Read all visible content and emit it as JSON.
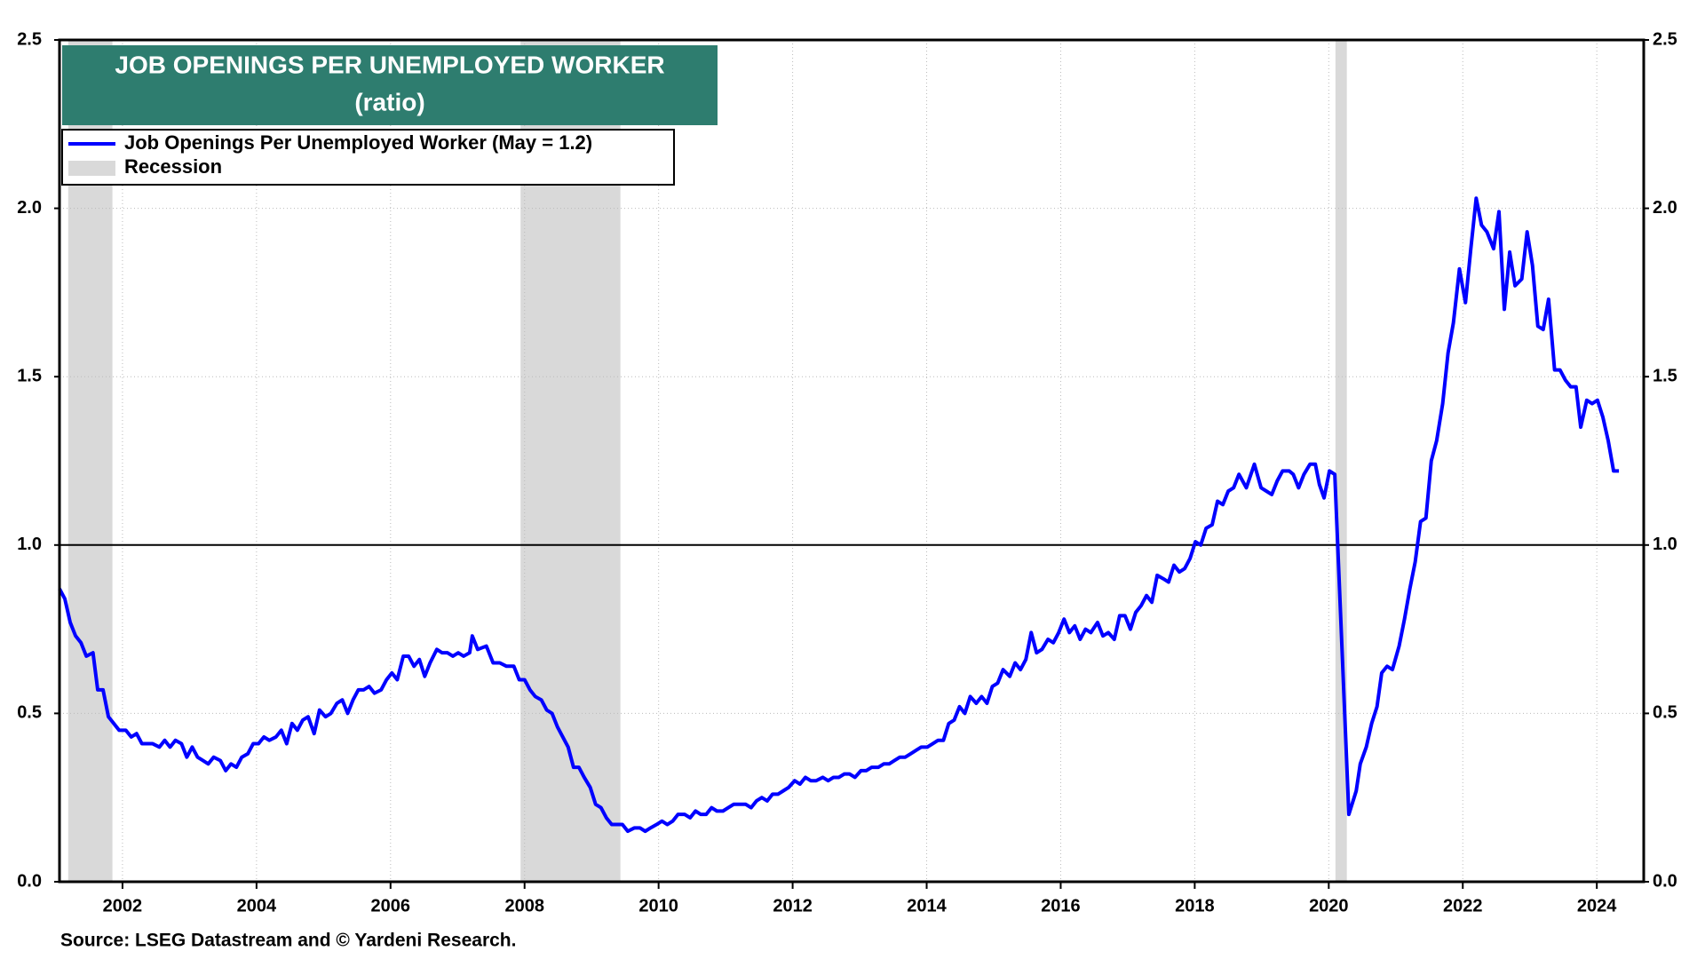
{
  "chart_data": {
    "type": "line",
    "title": "JOB OPENINGS PER UNEMPLOYED WORKER",
    "subtitle": "(ratio)",
    "source": "Source: LSEG Datastream and © Yardeni Research.",
    "xlim": [
      2001.06,
      2024.7
    ],
    "xticks": [
      2002,
      2004,
      2006,
      2008,
      2010,
      2012,
      2014,
      2016,
      2018,
      2020,
      2022,
      2024
    ],
    "ylim": [
      0,
      2.5
    ],
    "yticks": [
      {
        "value": 0,
        "label": "0.0"
      },
      {
        "value": 0.5,
        "label": "0.5"
      },
      {
        "value": 1,
        "label": "1.0"
      },
      {
        "value": 1.5,
        "label": "1.5"
      },
      {
        "value": 2,
        "label": "2.0"
      },
      {
        "value": 2.5,
        "label": "2.5"
      }
    ],
    "grid": true,
    "reference_line": 1,
    "recession_name": "Recession",
    "recession_color": "#d9d9d9",
    "recessions": [
      {
        "start": 2001.19,
        "end": 2001.85
      },
      {
        "start": 2007.94,
        "end": 2009.43
      },
      {
        "start": 2020.1,
        "end": 2020.27
      }
    ],
    "x": [
      2001.06,
      2001.14,
      2001.22,
      2001.3,
      2001.38,
      2001.46,
      2001.56,
      2001.63,
      2001.71,
      2001.79,
      2001.87,
      2001.95,
      2002.05,
      2002.13,
      2002.21,
      2002.29,
      2002.37,
      2002.45,
      2002.55,
      2002.63,
      2002.71,
      2002.79,
      2002.88,
      2002.96,
      2003.04,
      2003.12,
      2003.2,
      2003.28,
      2003.36,
      2003.46,
      2003.54,
      2003.62,
      2003.7,
      2003.78,
      2003.87,
      2003.95,
      2004.03,
      2004.11,
      2004.19,
      2004.29,
      2004.37,
      2004.45,
      2004.53,
      2004.61,
      2004.69,
      2004.77,
      2004.86,
      2004.94,
      2005.03,
      2005.11,
      2005.2,
      2005.28,
      2005.36,
      2005.44,
      2005.52,
      2005.6,
      2005.68,
      2005.76,
      2005.86,
      2005.94,
      2006.02,
      2006.1,
      2006.19,
      2006.27,
      2006.35,
      2006.43,
      2006.51,
      2006.59,
      2006.69,
      2006.77,
      2006.85,
      2006.93,
      2007.01,
      2007.09,
      2007.18,
      2007.22,
      2007.3,
      2007.43,
      2007.53,
      2007.63,
      2007.73,
      2007.84,
      2007.92,
      2008.0,
      2008.08,
      2008.16,
      2008.25,
      2008.33,
      2008.41,
      2008.49,
      2008.57,
      2008.65,
      2008.73,
      2008.81,
      2008.89,
      2008.98,
      2009.06,
      2009.14,
      2009.22,
      2009.3,
      2009.38,
      2009.46,
      2009.54,
      2009.64,
      2009.72,
      2009.8,
      2009.88,
      2009.97,
      2010.05,
      2010.13,
      2010.21,
      2010.29,
      2010.39,
      2010.47,
      2010.55,
      2010.63,
      2010.71,
      2010.79,
      2010.87,
      2010.96,
      2011.04,
      2011.12,
      2011.21,
      2011.3,
      2011.38,
      2011.46,
      2011.54,
      2011.62,
      2011.7,
      2011.78,
      2011.86,
      2011.94,
      2012.03,
      2012.11,
      2012.19,
      2012.27,
      2012.35,
      2012.45,
      2012.53,
      2012.61,
      2012.69,
      2012.77,
      2012.85,
      2012.93,
      2013.02,
      2013.1,
      2013.18,
      2013.28,
      2013.36,
      2013.44,
      2013.52,
      2013.6,
      2013.68,
      2013.76,
      2013.84,
      2013.92,
      2014.01,
      2014.09,
      2014.17,
      2014.25,
      2014.33,
      2014.41,
      2014.49,
      2014.57,
      2014.65,
      2014.74,
      2014.82,
      2014.9,
      2014.98,
      2015.06,
      2015.14,
      2015.24,
      2015.32,
      2015.4,
      2015.48,
      2015.56,
      2015.64,
      2015.72,
      2015.81,
      2015.89,
      2015.97,
      2016.05,
      2016.13,
      2016.21,
      2016.29,
      2016.37,
      2016.45,
      2016.55,
      2016.63,
      2016.71,
      2016.8,
      2016.88,
      2016.96,
      2017.04,
      2017.12,
      2017.2,
      2017.28,
      2017.36,
      2017.44,
      2017.53,
      2017.61,
      2017.69,
      2017.77,
      2017.85,
      2017.93,
      2018.01,
      2018.09,
      2018.17,
      2018.26,
      2018.34,
      2018.42,
      2018.5,
      2018.58,
      2018.66,
      2018.77,
      2018.89,
      2018.99,
      2019.07,
      2019.15,
      2019.23,
      2019.31,
      2019.41,
      2019.47,
      2019.55,
      2019.63,
      2019.72,
      2019.8,
      2019.86,
      2019.93,
      2020.01,
      2020.09,
      2020.3,
      2020.41,
      2020.47,
      2020.56,
      2020.64,
      2020.72,
      2020.79,
      2020.87,
      2020.95,
      2021.05,
      2021.13,
      2021.21,
      2021.29,
      2021.37,
      2021.45,
      2021.53,
      2021.61,
      2021.7,
      2021.78,
      2021.86,
      2021.95,
      2022.04,
      2022.12,
      2022.2,
      2022.28,
      2022.36,
      2022.46,
      2022.54,
      2022.62,
      2022.7,
      2022.78,
      2022.88,
      2022.96,
      2023.04,
      2023.12,
      2023.2,
      2023.28,
      2023.37,
      2023.45,
      2023.53,
      2023.61,
      2023.69,
      2023.76,
      2023.85,
      2023.93,
      2024.01,
      2024.09,
      2024.17,
      2024.25,
      2024.33
    ],
    "series": [
      {
        "name": "Job Openings Per Unemployed Worker (May = 1.2)",
        "color": "#0000ff",
        "values": [
          0.87,
          0.84,
          0.77,
          0.73,
          0.71,
          0.67,
          0.68,
          0.57,
          0.57,
          0.49,
          0.47,
          0.45,
          0.45,
          0.43,
          0.44,
          0.41,
          0.41,
          0.41,
          0.4,
          0.42,
          0.4,
          0.42,
          0.41,
          0.37,
          0.4,
          0.37,
          0.36,
          0.35,
          0.37,
          0.36,
          0.33,
          0.35,
          0.34,
          0.37,
          0.38,
          0.41,
          0.41,
          0.43,
          0.42,
          0.43,
          0.45,
          0.41,
          0.47,
          0.45,
          0.48,
          0.49,
          0.44,
          0.51,
          0.49,
          0.5,
          0.53,
          0.54,
          0.5,
          0.54,
          0.57,
          0.57,
          0.58,
          0.56,
          0.57,
          0.6,
          0.62,
          0.6,
          0.67,
          0.67,
          0.64,
          0.66,
          0.61,
          0.65,
          0.69,
          0.68,
          0.68,
          0.67,
          0.68,
          0.67,
          0.68,
          0.73,
          0.69,
          0.7,
          0.65,
          0.65,
          0.64,
          0.64,
          0.6,
          0.6,
          0.57,
          0.55,
          0.54,
          0.51,
          0.5,
          0.46,
          0.43,
          0.4,
          0.34,
          0.34,
          0.31,
          0.28,
          0.23,
          0.22,
          0.19,
          0.17,
          0.17,
          0.17,
          0.15,
          0.16,
          0.16,
          0.15,
          0.16,
          0.17,
          0.18,
          0.17,
          0.18,
          0.2,
          0.2,
          0.19,
          0.21,
          0.2,
          0.2,
          0.22,
          0.21,
          0.21,
          0.22,
          0.23,
          0.23,
          0.23,
          0.22,
          0.24,
          0.25,
          0.24,
          0.26,
          0.26,
          0.27,
          0.28,
          0.3,
          0.29,
          0.31,
          0.3,
          0.3,
          0.31,
          0.3,
          0.31,
          0.31,
          0.32,
          0.32,
          0.31,
          0.33,
          0.33,
          0.34,
          0.34,
          0.35,
          0.35,
          0.36,
          0.37,
          0.37,
          0.38,
          0.39,
          0.4,
          0.4,
          0.41,
          0.42,
          0.42,
          0.47,
          0.48,
          0.52,
          0.5,
          0.55,
          0.53,
          0.55,
          0.53,
          0.58,
          0.59,
          0.63,
          0.61,
          0.65,
          0.63,
          0.66,
          0.74,
          0.68,
          0.69,
          0.72,
          0.71,
          0.74,
          0.78,
          0.74,
          0.76,
          0.72,
          0.75,
          0.74,
          0.77,
          0.73,
          0.74,
          0.72,
          0.79,
          0.79,
          0.75,
          0.8,
          0.82,
          0.85,
          0.83,
          0.91,
          0.9,
          0.89,
          0.94,
          0.92,
          0.93,
          0.96,
          1.01,
          1.0,
          1.05,
          1.06,
          1.13,
          1.12,
          1.16,
          1.17,
          1.21,
          1.17,
          1.24,
          1.17,
          1.16,
          1.15,
          1.19,
          1.22,
          1.22,
          1.21,
          1.17,
          1.21,
          1.24,
          1.24,
          1.18,
          1.14,
          1.22,
          1.21,
          0.2,
          0.27,
          0.35,
          0.4,
          0.47,
          0.52,
          0.62,
          0.64,
          0.63,
          0.7,
          0.78,
          0.87,
          0.95,
          1.07,
          1.08,
          1.25,
          1.31,
          1.42,
          1.57,
          1.66,
          1.82,
          1.72,
          1.88,
          2.03,
          1.95,
          1.93,
          1.88,
          1.99,
          1.7,
          1.87,
          1.77,
          1.79,
          1.93,
          1.83,
          1.65,
          1.64,
          1.73,
          1.52,
          1.52,
          1.49,
          1.47,
          1.47,
          1.35,
          1.43,
          1.42,
          1.43,
          1.38,
          1.31,
          1.22,
          1.22
        ]
      }
    ]
  }
}
